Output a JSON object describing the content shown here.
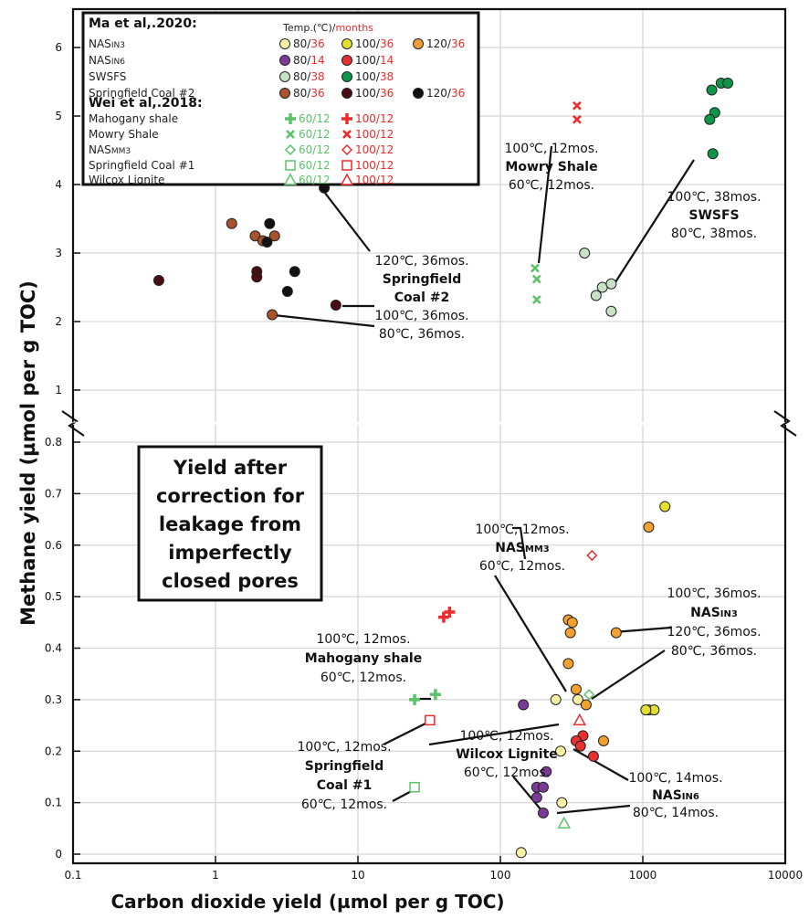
{
  "chart_data": {
    "type": "scatter",
    "ylabel": "Methane yield (µmol per g TOC)",
    "xlabel": "Carbon dioxide yield (µmol per g TOC)",
    "x_scale": "log",
    "xlim": [
      0.1,
      10000
    ],
    "x_ticks": [
      "0.1",
      "1",
      "10",
      "100",
      "1000",
      "10000"
    ],
    "upper_ylim": [
      0.8,
      6.6
    ],
    "upper_y_ticks": [
      "1",
      "2",
      "3",
      "4",
      "5",
      "6"
    ],
    "lower_ylim": [
      0,
      0.83
    ],
    "lower_y_ticks": [
      "0",
      "0.1",
      "0.2",
      "0.3",
      "0.4",
      "0.5",
      "0.6",
      "0.7",
      "0.8"
    ],
    "legend": {
      "ma_title": "Ma et al,.2020:",
      "wei_title": "Wei et al,.2018:",
      "temp_black": "Temp.(℃)/",
      "temp_red": "months",
      "ma_rows": [
        {
          "name": "NASIN3",
          "entries": [
            {
              "t": "80",
              "m": "36",
              "color": "#F7F2A4"
            },
            {
              "t": "100",
              "m": "36",
              "color": "#E5E030"
            },
            {
              "t": "120",
              "m": "36",
              "color": "#F2A030"
            }
          ]
        },
        {
          "name": "NASIN6",
          "entries": [
            {
              "t": "80",
              "m": "14",
              "color": "#7B3B96"
            },
            {
              "t": "100",
              "m": "14",
              "color": "#E83030"
            }
          ]
        },
        {
          "name": "SWSFS",
          "entries": [
            {
              "t": "80",
              "m": "38",
              "color": "#C8E2C6"
            },
            {
              "t": "100",
              "m": "38",
              "color": "#0E9648"
            }
          ]
        },
        {
          "name": "Springfield Coal #2",
          "entries": [
            {
              "t": "80",
              "m": "36",
              "color": "#A8532C"
            },
            {
              "t": "100",
              "m": "36",
              "color": "#4A0D12"
            },
            {
              "t": "120",
              "m": "36",
              "color": "#111111"
            }
          ]
        }
      ],
      "wei_rows": [
        {
          "name": "Mahogany shale",
          "marker": "plus",
          "entries": [
            {
              "t": "60",
              "m": "12"
            },
            {
              "t": "100",
              "m": "12"
            }
          ]
        },
        {
          "name": "Mowry Shale",
          "marker": "x",
          "entries": [
            {
              "t": "60",
              "m": "12"
            },
            {
              "t": "100",
              "m": "12"
            }
          ]
        },
        {
          "name": "NASMM3",
          "marker": "diamond",
          "entries": [
            {
              "t": "60",
              "m": "12"
            },
            {
              "t": "100",
              "m": "12"
            }
          ]
        },
        {
          "name": "Springfield Coal #1",
          "marker": "square",
          "entries": [
            {
              "t": "60",
              "m": "12"
            },
            {
              "t": "100",
              "m": "12"
            }
          ]
        },
        {
          "name": "Wilcox Lignite",
          "marker": "triangle",
          "entries": [
            {
              "t": "60",
              "m": "12"
            },
            {
              "t": "100",
              "m": "12"
            }
          ]
        }
      ]
    },
    "box_text": [
      "Yield after",
      "correction for",
      "leakage from",
      "imperfectly",
      "closed pores"
    ],
    "series": [
      {
        "name": "Springfield Coal #2 80°C",
        "panel": "upper",
        "marker": "circle",
        "fill": "#A8532C",
        "points": [
          [
            1.3,
            3.43
          ],
          [
            1.9,
            3.25
          ],
          [
            2.15,
            3.18
          ],
          [
            2.6,
            3.25
          ],
          [
            2.5,
            2.1
          ]
        ]
      },
      {
        "name": "Springfield Coal #2 100°C",
        "panel": "upper",
        "marker": "circle",
        "fill": "#4A0D12",
        "points": [
          [
            0.4,
            2.6
          ],
          [
            1.95,
            2.73
          ],
          [
            1.95,
            2.65
          ],
          [
            7.0,
            2.24
          ]
        ]
      },
      {
        "name": "Springfield Coal #2 120°C",
        "panel": "upper",
        "marker": "circle",
        "fill": "#111111",
        "points": [
          [
            2.4,
            3.43
          ],
          [
            2.3,
            3.16
          ],
          [
            3.6,
            2.73
          ],
          [
            3.2,
            2.44
          ],
          [
            5.8,
            3.95
          ]
        ]
      },
      {
        "name": "SWSFS 80°C",
        "panel": "upper",
        "marker": "circle",
        "fill": "#C8E2C6",
        "points": [
          [
            390,
            3.0
          ],
          [
            470,
            2.38
          ],
          [
            520,
            2.5
          ],
          [
            600,
            2.55
          ],
          [
            600,
            2.15
          ]
        ]
      },
      {
        "name": "SWSFS 100°C",
        "panel": "upper",
        "marker": "circle",
        "fill": "#0E9648",
        "points": [
          [
            3050,
            5.38
          ],
          [
            3550,
            5.48
          ],
          [
            3950,
            5.48
          ],
          [
            3200,
            5.05
          ],
          [
            2950,
            4.95
          ],
          [
            3100,
            4.45
          ]
        ]
      },
      {
        "name": "Mowry Shale 60°C",
        "panel": "upper",
        "marker": "x",
        "color": "#5CC36A",
        "points": [
          [
            175,
            2.78
          ],
          [
            180,
            2.62
          ],
          [
            180,
            2.32
          ]
        ]
      },
      {
        "name": "Mowry Shale 100°C",
        "panel": "upper",
        "marker": "x",
        "color": "#EE2B2B",
        "points": [
          [
            345,
            5.15
          ],
          [
            345,
            4.95
          ]
        ]
      },
      {
        "name": "NASIN3 80°C",
        "panel": "lower",
        "marker": "circle",
        "fill": "#F7F2A4",
        "points": [
          [
            140,
            0.003
          ],
          [
            245,
            0.3
          ],
          [
            270,
            0.1
          ],
          [
            265,
            0.2
          ],
          [
            350,
            0.3
          ],
          [
            1100,
            0.28
          ]
        ]
      },
      {
        "name": "NASIN3 100°C",
        "panel": "lower",
        "marker": "circle",
        "fill": "#E5E030",
        "points": [
          [
            1430,
            0.675
          ],
          [
            1200,
            0.28
          ],
          [
            1050,
            0.28
          ]
        ]
      },
      {
        "name": "NASIN3 120°C",
        "panel": "lower",
        "marker": "circle",
        "fill": "#F2A030",
        "points": [
          [
            300,
            0.455
          ],
          [
            320,
            0.45
          ],
          [
            310,
            0.43
          ],
          [
            300,
            0.37
          ],
          [
            340,
            0.32
          ],
          [
            400,
            0.29
          ],
          [
            530,
            0.22
          ],
          [
            650,
            0.43
          ],
          [
            1100,
            0.635
          ]
        ]
      },
      {
        "name": "NASIN6 80°C",
        "panel": "lower",
        "marker": "circle",
        "fill": "#7B3B96",
        "points": [
          [
            145,
            0.29
          ],
          [
            180,
            0.13
          ],
          [
            200,
            0.13
          ],
          [
            180,
            0.11
          ],
          [
            210,
            0.16
          ],
          [
            200,
            0.08
          ]
        ]
      },
      {
        "name": "NASIN6 100°C",
        "panel": "lower",
        "marker": "circle",
        "fill": "#E83030",
        "points": [
          [
            380,
            0.23
          ],
          [
            340,
            0.22
          ],
          [
            365,
            0.21
          ],
          [
            450,
            0.19
          ]
        ]
      },
      {
        "name": "Mahogany shale 60°C",
        "panel": "lower",
        "marker": "plus",
        "color": "#5CC36A",
        "points": [
          [
            25,
            0.3
          ],
          [
            35,
            0.31
          ]
        ]
      },
      {
        "name": "Mahogany shale 100°C",
        "panel": "lower",
        "marker": "plus",
        "color": "#EE2B2B",
        "points": [
          [
            40,
            0.46
          ],
          [
            44,
            0.47
          ]
        ]
      },
      {
        "name": "NASMM3 60°C",
        "panel": "lower",
        "marker": "diamond",
        "color": "#5CC36A",
        "points": [
          [
            420,
            0.31
          ]
        ]
      },
      {
        "name": "NASMM3 100°C",
        "panel": "lower",
        "marker": "diamond",
        "color": "#EE2B2B",
        "points": [
          [
            440,
            0.58
          ]
        ]
      },
      {
        "name": "Springfield Coal #1 60°C",
        "panel": "lower",
        "marker": "square",
        "color": "#5CC36A",
        "points": [
          [
            25,
            0.13
          ]
        ]
      },
      {
        "name": "Springfield Coal #1 100°C",
        "panel": "lower",
        "marker": "square",
        "color": "#EE2B2B",
        "points": [
          [
            32,
            0.26
          ]
        ]
      },
      {
        "name": "Wilcox Lignite 60°C",
        "panel": "lower",
        "marker": "triangle",
        "color": "#5CC36A",
        "points": [
          [
            280,
            0.06
          ]
        ]
      },
      {
        "name": "Wilcox Lignite 100°C",
        "panel": "lower",
        "marker": "triangle",
        "color": "#EE2B2B",
        "points": [
          [
            360,
            0.26
          ]
        ]
      }
    ],
    "annotations": [
      {
        "lines": [
          "120℃, 36mos.",
          "**Springfield",
          "**Coal #2",
          "100℃, 36mos.",
          "80℃, 36mos."
        ]
      },
      {
        "lines": [
          "100℃, 12mos.",
          "**Mowry Shale",
          "60℃, 12mos."
        ]
      },
      {
        "lines": [
          "100℃, 38mos.",
          "**SWSFS",
          "80℃, 38mos."
        ]
      },
      {
        "lines": [
          "100℃, 12mos.",
          "**NASMM3",
          "60℃, 12mos."
        ]
      },
      {
        "lines": [
          "100℃, 36mos.",
          "**NASIN3",
          "120℃, 36mos.",
          "80℃, 36mos."
        ]
      },
      {
        "lines": [
          "100℃, 12mos.",
          "**Mahogany shale",
          "60℃, 12mos."
        ]
      },
      {
        "lines": [
          "100℃, 12mos.",
          "**Wilcox Lignite",
          "60℃, 12mos."
        ]
      },
      {
        "lines": [
          "100℃, 12mos.",
          "**Springfield",
          "**Coal #1",
          "60℃, 12mos."
        ]
      },
      {
        "lines": [
          "100℃, 14mos.",
          "**NASIN6",
          "80℃, 14mos."
        ]
      }
    ]
  }
}
